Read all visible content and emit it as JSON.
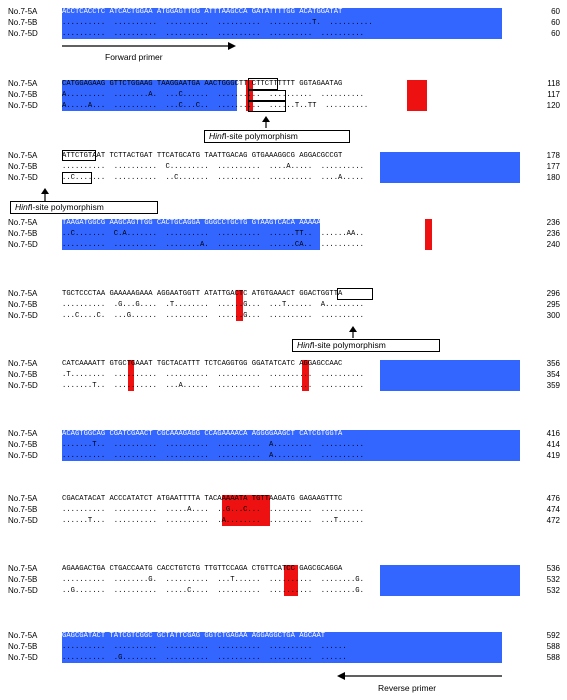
{
  "blocks": [
    {
      "rows": [
        {
          "name": "No.7-5A",
          "seq": "ACCTCACCTC ATCACTGGAA ATGGAGTTGG ATTTAAGCCA GATATTTTGG ACATGGATAT",
          "num": "60"
        },
        {
          "name": "No.7-5B",
          "seq": "..........  ..........  ..........  ..........  ..........T.  ..........",
          "num": "60"
        },
        {
          "name": "No.7-5D",
          "seq": "..........  ..........  ..........  ..........  ..........  ..........",
          "num": "60"
        }
      ]
    },
    {
      "rows": [
        {
          "name": "No.7-5A",
          "seq": "CATGGAGAAG GTTCTGGAAG TAAGGAATGA AACTGGGCTT CTTCTTTTTT GGTAGAATAG",
          "num": "118"
        },
        {
          "name": "No.7-5B",
          "seq": "A.........  ........A.  ...C......  ..........  ..........  ..........",
          "num": "117"
        },
        {
          "name": "No.7-5D",
          "seq": "A.....A...  ..........  ...C...C..  ..........  ......T..TT  ..........",
          "num": "120"
        }
      ]
    },
    {
      "rows": [
        {
          "name": "No.7-5A",
          "seq": "ATTCTGTAAT TCTTACTGAT TTCATGCATG TAATTGACAG GTGAAAGGCG AGGACGCCGT",
          "num": "178"
        },
        {
          "name": "No.7-5B",
          "seq": "..........  ..........  C.........  ..........  ....A.....  ..........",
          "num": "177"
        },
        {
          "name": "No.7-5D",
          "seq": "..C.......  ..........  ..C.......  ..........  ..........  ....A.....",
          "num": "180"
        }
      ]
    },
    {
      "rows": [
        {
          "name": "No.7-5A",
          "seq": "TAAGATGGCG AAGCAGTTGG CACTGCAGGA GGGCCTGCTG GTAAGTCACA AAAAATTAAC",
          "num": "236"
        },
        {
          "name": "No.7-5B",
          "seq": "..C.......  C.A.......  ..........  ..........  ......TT..  ......AA..",
          "num": "236"
        },
        {
          "name": "No.7-5D",
          "seq": "..........  ..........  ........A.  ..........  ......CA..  ..........",
          "num": "240"
        }
      ]
    },
    {
      "rows": [
        {
          "name": "No.7-5A",
          "seq": "TGCTCCCTAA GAAAAAGAAA AGGAATGGTT ATATTGACTC ATGTGAAACT GGACTGGTTA",
          "num": "296"
        },
        {
          "name": "No.7-5B",
          "seq": "..........  .G...G....  .T........  ......G...  ...T......  A.........",
          "num": "295"
        },
        {
          "name": "No.7-5D",
          "seq": "...C....C.  ...G......  ..........  ......G...  ..........  ..........",
          "num": "300"
        }
      ]
    },
    {
      "rows": [
        {
          "name": "No.7-5A",
          "seq": "CATCAAAATT GTGCTGAAAT TGCTACATTT TCTCAGGTGG GGATATCATC AGGAGCCAAC",
          "num": "356"
        },
        {
          "name": "No.7-5B",
          "seq": ".T........  ..........  ..........  ..........  ..........  ..........",
          "num": "354"
        },
        {
          "name": "No.7-5D",
          "seq": ".......T..  ..........  ...A......  ..........  ..........  ..........",
          "num": "359"
        }
      ]
    },
    {
      "rows": [
        {
          "name": "No.7-5A",
          "seq": "ACAGTGGCAG CGATCGAACT CGCAAAGAGG CCAGAAAACA AGGGGAAGCT CATCGTGGTA",
          "num": "416"
        },
        {
          "name": "No.7-5B",
          "seq": ".......T..  ..........  ..........  ..........  A.........  ..........",
          "num": "414"
        },
        {
          "name": "No.7-5D",
          "seq": "..........  ..........  ..........  ..........  A.........  ..........",
          "num": "419"
        }
      ]
    },
    {
      "rows": [
        {
          "name": "No.7-5A",
          "seq": "CGACATACAT ACCCATATCT ATGAATTTTA TACAAAAATA TGTTAAGATG GAGAAGTTTC",
          "num": "476"
        },
        {
          "name": "No.7-5B",
          "seq": "..........  ..........  .....A....  ..G...C...  ..........  ..........",
          "num": "474"
        },
        {
          "name": "No.7-5D",
          "seq": "......T...  ..........  ..........  .A........  ..........  ...T......",
          "num": "472"
        }
      ]
    },
    {
      "rows": [
        {
          "name": "No.7-5A",
          "seq": "AGAAGACTGA CTGACCAATG CACCTGTCTG TTGTTCCAGA CTGTTCATCC GAGCGCAGGA",
          "num": "536"
        },
        {
          "name": "No.7-5B",
          "seq": "..........  ........G.  ..........  ...T......  ..........  ........G.",
          "num": "532"
        },
        {
          "name": "No.7-5D",
          "seq": "..G.......  ..........  .....C....  ..........  ..........  ........G.",
          "num": "532"
        }
      ]
    },
    {
      "rows": [
        {
          "name": "No.7-5A",
          "seq": "GAGCGATACT TATCGTCGGC GCTATTCGAG GGTCTGAGAA AGGAGGCTGA AGCAAT",
          "num": "592"
        },
        {
          "name": "No.7-5B",
          "seq": "..........  ..........  ..........  ..........  ..........  ......",
          "num": "588"
        },
        {
          "name": "No.7-5D",
          "seq": "..........  .G........  ..........  ..........  ..........  ......",
          "num": "588"
        }
      ]
    }
  ],
  "annotations": {
    "forward_primer": "Forward primer",
    "reverse_primer": "Reverse primer",
    "hinf_label_italic": "Hinf",
    "hinf_label_rest": "I-site polymorphism"
  },
  "colors": {
    "primer_highlight": "#3366ff",
    "snp_highlight": "#ee1111"
  }
}
